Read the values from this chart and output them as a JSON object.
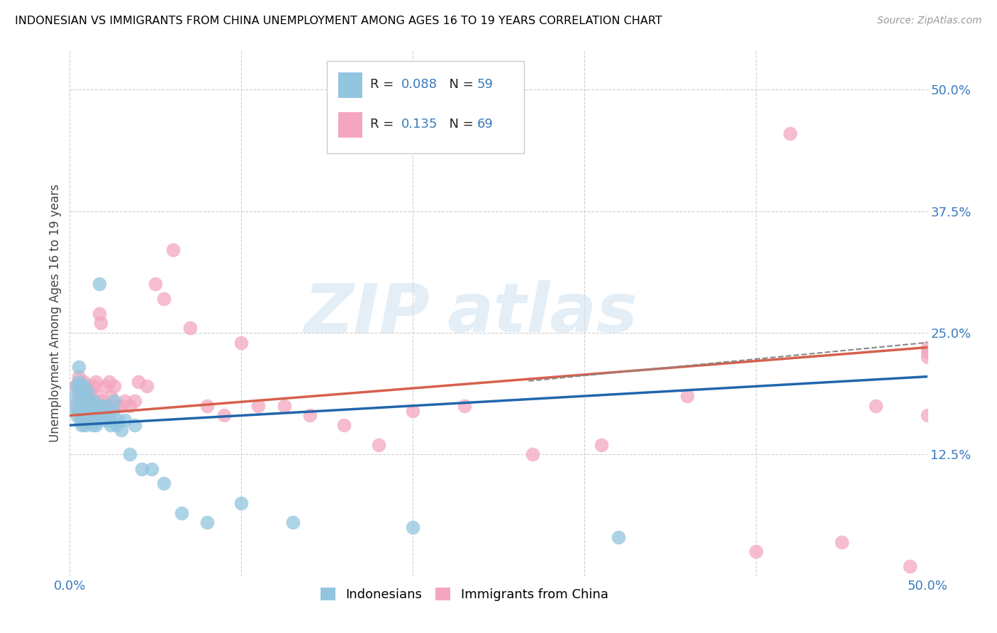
{
  "title": "INDONESIAN VS IMMIGRANTS FROM CHINA UNEMPLOYMENT AMONG AGES 16 TO 19 YEARS CORRELATION CHART",
  "source": "Source: ZipAtlas.com",
  "ylabel": "Unemployment Among Ages 16 to 19 years",
  "xlim": [
    0.0,
    0.5
  ],
  "ylim": [
    0.0,
    0.54
  ],
  "blue_color": "#92c5de",
  "pink_color": "#f4a6c0",
  "blue_line_color": "#2166ac",
  "pink_line_color": "#d6604d",
  "grid_color": "#d0d0d0",
  "indonesians_x": [
    0.002,
    0.003,
    0.004,
    0.004,
    0.005,
    0.005,
    0.005,
    0.006,
    0.006,
    0.006,
    0.007,
    0.007,
    0.007,
    0.008,
    0.008,
    0.008,
    0.009,
    0.009,
    0.009,
    0.01,
    0.01,
    0.01,
    0.011,
    0.011,
    0.012,
    0.012,
    0.013,
    0.013,
    0.014,
    0.014,
    0.015,
    0.015,
    0.016,
    0.016,
    0.017,
    0.018,
    0.019,
    0.02,
    0.021,
    0.022,
    0.023,
    0.024,
    0.025,
    0.026,
    0.027,
    0.028,
    0.03,
    0.032,
    0.035,
    0.038,
    0.042,
    0.048,
    0.055,
    0.065,
    0.08,
    0.1,
    0.13,
    0.2,
    0.32
  ],
  "indonesians_y": [
    0.175,
    0.185,
    0.165,
    0.195,
    0.17,
    0.2,
    0.215,
    0.16,
    0.175,
    0.195,
    0.155,
    0.17,
    0.185,
    0.165,
    0.18,
    0.195,
    0.155,
    0.17,
    0.185,
    0.16,
    0.175,
    0.19,
    0.165,
    0.18,
    0.16,
    0.175,
    0.155,
    0.17,
    0.165,
    0.18,
    0.155,
    0.17,
    0.16,
    0.175,
    0.3,
    0.175,
    0.165,
    0.16,
    0.175,
    0.165,
    0.16,
    0.155,
    0.17,
    0.18,
    0.155,
    0.16,
    0.15,
    0.16,
    0.125,
    0.155,
    0.11,
    0.11,
    0.095,
    0.065,
    0.055,
    0.075,
    0.055,
    0.05,
    0.04
  ],
  "china_x": [
    0.003,
    0.004,
    0.005,
    0.005,
    0.006,
    0.006,
    0.007,
    0.007,
    0.008,
    0.008,
    0.009,
    0.009,
    0.01,
    0.01,
    0.011,
    0.011,
    0.012,
    0.012,
    0.013,
    0.013,
    0.014,
    0.014,
    0.015,
    0.015,
    0.016,
    0.016,
    0.017,
    0.018,
    0.019,
    0.02,
    0.021,
    0.022,
    0.023,
    0.024,
    0.025,
    0.026,
    0.028,
    0.03,
    0.032,
    0.035,
    0.038,
    0.04,
    0.045,
    0.05,
    0.055,
    0.06,
    0.07,
    0.08,
    0.09,
    0.1,
    0.11,
    0.125,
    0.14,
    0.16,
    0.18,
    0.2,
    0.23,
    0.27,
    0.31,
    0.36,
    0.4,
    0.42,
    0.45,
    0.47,
    0.49,
    0.5,
    0.5,
    0.5,
    0.5
  ],
  "china_y": [
    0.195,
    0.175,
    0.205,
    0.185,
    0.17,
    0.195,
    0.165,
    0.19,
    0.175,
    0.2,
    0.16,
    0.185,
    0.17,
    0.195,
    0.165,
    0.185,
    0.175,
    0.19,
    0.165,
    0.18,
    0.195,
    0.17,
    0.2,
    0.175,
    0.185,
    0.165,
    0.27,
    0.26,
    0.18,
    0.175,
    0.195,
    0.175,
    0.2,
    0.185,
    0.175,
    0.195,
    0.175,
    0.175,
    0.18,
    0.175,
    0.18,
    0.2,
    0.195,
    0.3,
    0.285,
    0.335,
    0.255,
    0.175,
    0.165,
    0.24,
    0.175,
    0.175,
    0.165,
    0.155,
    0.135,
    0.17,
    0.175,
    0.125,
    0.135,
    0.185,
    0.025,
    0.455,
    0.035,
    0.175,
    0.01,
    0.23,
    0.165,
    0.235,
    0.225
  ],
  "r_indo": 0.088,
  "n_indo": 59,
  "r_china": 0.135,
  "n_china": 69
}
